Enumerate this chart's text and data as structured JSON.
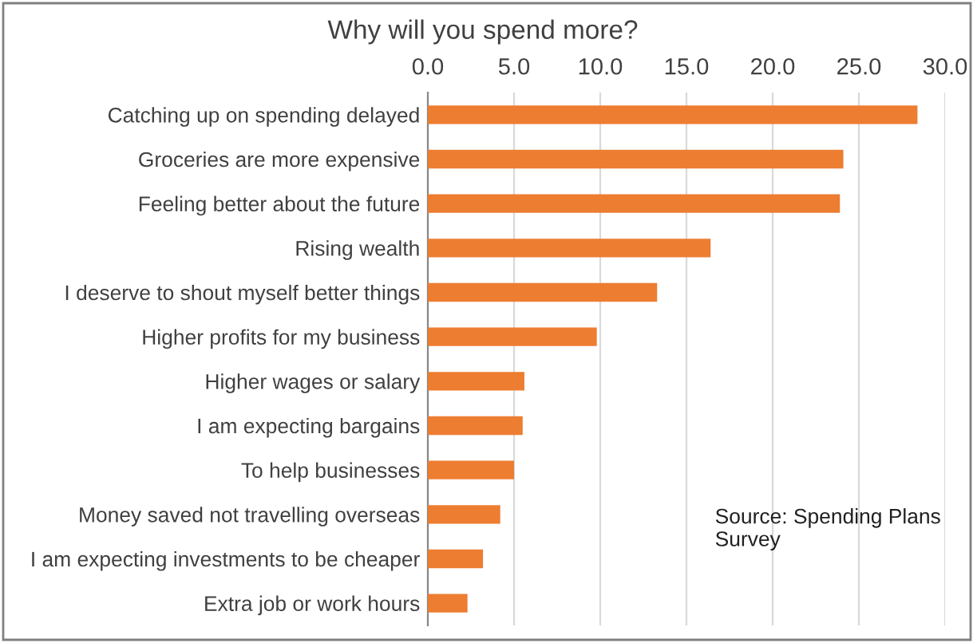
{
  "chart_data": {
    "type": "bar",
    "orientation": "horizontal",
    "title": "Why will you spend more?",
    "categories": [
      "Catching up on spending delayed",
      "Groceries are more expensive",
      "Feeling better about the future",
      "Rising wealth",
      "I deserve to shout myself better things",
      "Higher profits for my business",
      "Higher wages or salary",
      "I am expecting bargains",
      "To help businesses",
      "Money saved not travelling overseas",
      "I am expecting investments to be cheaper",
      "Extra job or work hours"
    ],
    "values": [
      28.4,
      24.1,
      23.9,
      16.4,
      13.3,
      9.8,
      5.6,
      5.5,
      5.0,
      4.2,
      3.2,
      2.3
    ],
    "color": "#ed7d31",
    "xlim": [
      0,
      30
    ],
    "xticks": [
      {
        "value": 0,
        "label": "0.0"
      },
      {
        "value": 5,
        "label": "5.0"
      },
      {
        "value": 10,
        "label": "10.0"
      },
      {
        "value": 15,
        "label": "15.0"
      },
      {
        "value": 20,
        "label": "20.0"
      },
      {
        "value": 25,
        "label": "25.0"
      },
      {
        "value": 30,
        "label": "30.0"
      }
    ],
    "grid": "x",
    "annotations": [
      "Source: Spending Plans\nSurvey"
    ]
  }
}
